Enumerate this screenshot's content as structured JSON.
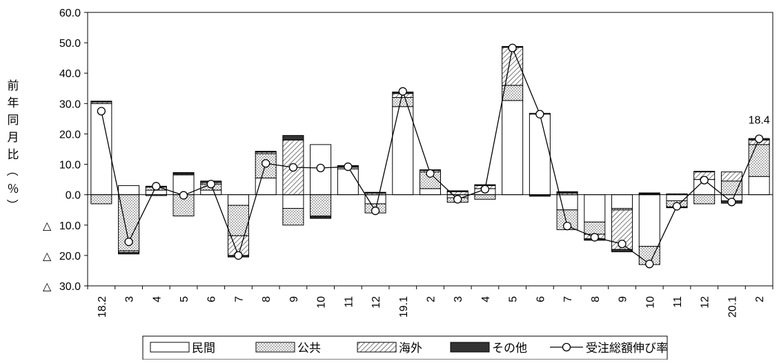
{
  "chart_data": {
    "type": "bar",
    "stacked": true,
    "ylabel": "前年同月比（％）",
    "ylim": [
      -30,
      60
    ],
    "yticks": [
      60,
      50,
      40,
      30,
      20,
      10,
      0,
      -10,
      -20,
      -30
    ],
    "ytick_labels": [
      "60.0",
      "50.0",
      "40.0",
      "30.0",
      "20.0",
      "10.0",
      "0.0",
      "△ 10.0",
      "△ 20.0",
      "△ 30.0"
    ],
    "categories": [
      "18.2",
      "3",
      "4",
      "5",
      "6",
      "7",
      "8",
      "9",
      "10",
      "11",
      "12",
      "19.1",
      "2",
      "3",
      "4",
      "5",
      "6",
      "7",
      "8",
      "9",
      "10",
      "11",
      "12",
      "20.1",
      "2"
    ],
    "series": [
      {
        "name": "民間",
        "values": [
          30.0,
          3.0,
          1.5,
          6.5,
          1.5,
          -3.5,
          5.5,
          -4.5,
          16.5,
          8.5,
          -3.0,
          29.0,
          2.0,
          -1.0,
          2.0,
          31.0,
          26.5,
          -5.0,
          -9.0,
          -4.5,
          -17.0,
          -2.0,
          5.0,
          -2.0,
          6.0
        ]
      },
      {
        "name": "公共",
        "values": [
          -3.0,
          -18.5,
          1.0,
          -7.0,
          2.0,
          -10.0,
          8.0,
          -5.5,
          -7.0,
          0.5,
          -3.0,
          3.0,
          5.5,
          -1.5,
          -1.5,
          5.0,
          0.0,
          -6.5,
          -4.0,
          -0.5,
          -6.0,
          -2.0,
          -3.0,
          4.5,
          10.5
        ]
      },
      {
        "name": "海外",
        "values": [
          0.5,
          -0.5,
          -0.3,
          0.3,
          0.5,
          -6.5,
          0.5,
          18.0,
          -0.3,
          0.3,
          0.5,
          1.3,
          0.5,
          1.0,
          1.0,
          12.5,
          0.3,
          0.5,
          -1.5,
          -13.0,
          0.3,
          0.3,
          2.5,
          3.0,
          1.5
        ]
      },
      {
        "name": "その他",
        "values": [
          0.3,
          -0.5,
          0.3,
          0.5,
          0.5,
          -0.5,
          0.3,
          1.5,
          -0.5,
          0.3,
          0.3,
          0.5,
          0.2,
          0.3,
          0.3,
          0.3,
          -0.5,
          0.5,
          -0.5,
          -0.8,
          0.3,
          -0.3,
          0.2,
          -0.8,
          0.5
        ]
      },
      {
        "name": "受注総額伸び率",
        "type": "line",
        "values": [
          27.5,
          -15.5,
          2.8,
          -0.2,
          3.5,
          -20.0,
          10.3,
          9.0,
          8.8,
          9.2,
          -5.3,
          34.0,
          7.0,
          -1.5,
          1.8,
          48.3,
          26.5,
          -10.3,
          -14.0,
          -16.2,
          -22.8,
          -3.8,
          4.8,
          -2.4,
          18.4
        ]
      }
    ],
    "annotations": [
      {
        "text": "18.4",
        "category_index": 24,
        "value": 18.4
      }
    ],
    "legend_position": "bottom",
    "grid": false,
    "colors": {
      "line": "#000000",
      "bar_edge": "#000000",
      "other_fill": "#333333"
    }
  }
}
